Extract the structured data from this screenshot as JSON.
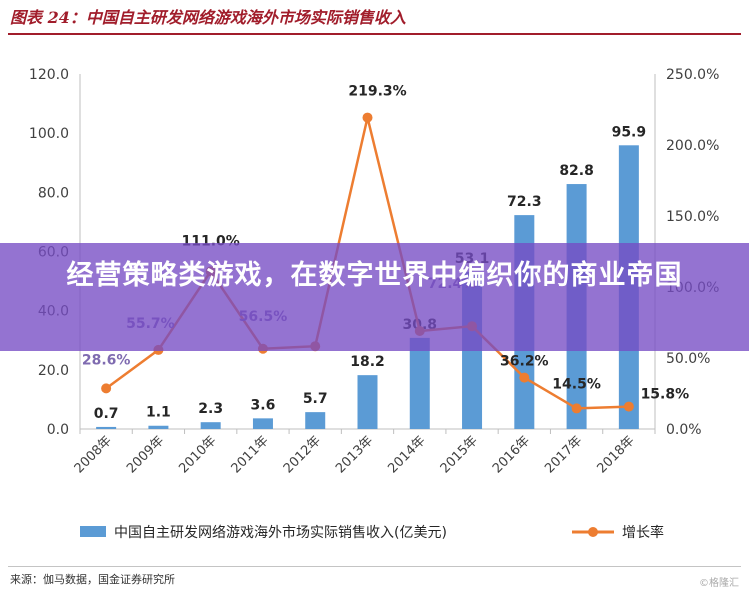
{
  "header": {
    "title": "图表 24：中国自主研发网络游戏海外市场实际销售收入"
  },
  "banner": {
    "text": "经营策略类游戏，在数字世界中编织你的商业帝国"
  },
  "footer": {
    "source": "来源：伽马数据，国金证券研究所",
    "watermark": "©格隆汇"
  },
  "chart_data": {
    "type": "bar",
    "title": "图表 24：中国自主研发网络游戏海外市场实际销售收入",
    "categories": [
      "2008年",
      "2009年",
      "2010年",
      "2011年",
      "2012年",
      "2013年",
      "2014年",
      "2015年",
      "2016年",
      "2017年",
      "2018年"
    ],
    "series": [
      {
        "name": "中国自主研发网络游戏海外市场实际销售收入(亿美元)",
        "type": "bar",
        "axis": "left",
        "color": "#5b9bd5",
        "values": [
          0.7,
          1.1,
          2.3,
          3.6,
          5.7,
          18.2,
          30.8,
          53.1,
          72.3,
          82.8,
          95.9
        ],
        "labels": [
          "0.7",
          "1.1",
          "2.3",
          "3.6",
          "5.7",
          "18.2",
          "30.8",
          "53.1",
          "72.3",
          "82.8",
          "95.9"
        ]
      },
      {
        "name": "增长率",
        "type": "line",
        "axis": "right",
        "color": "#ed7d31",
        "values": [
          28.6,
          55.7,
          111.0,
          56.5,
          58.3,
          219.3,
          69.0,
          72.4,
          36.2,
          14.5,
          15.8
        ],
        "labels": [
          "28.6%",
          "55.7%",
          "111.0%",
          "56.5%",
          "",
          "219.3%",
          "",
          "72.4%",
          "36.2%",
          "14.5%",
          "15.8%"
        ]
      }
    ],
    "left_axis": {
      "range": [
        0,
        120
      ],
      "ticks": [
        "0.0",
        "20.0",
        "40.0",
        "60.0",
        "80.0",
        "100.0",
        "120.0"
      ]
    },
    "right_axis": {
      "range": [
        0,
        250
      ],
      "ticks": [
        "0.0%",
        "50.0%",
        "100.0%",
        "150.0%",
        "200.0%",
        "250.0%"
      ]
    },
    "grid": false,
    "legend": {
      "position": "bottom",
      "bar_label": "中国自主研发网络游戏海外市场实际销售收入(亿美元)",
      "line_label": "增长率"
    },
    "xlabel": "",
    "ylabel": ""
  }
}
